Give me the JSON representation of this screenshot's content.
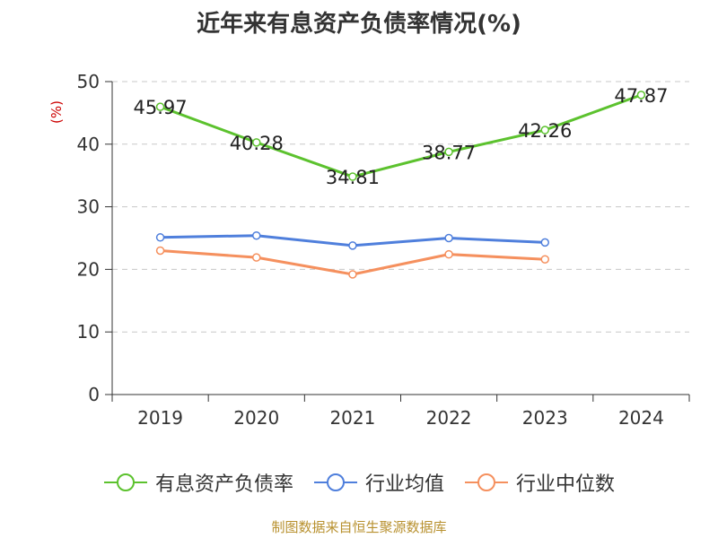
{
  "chart_data": {
    "type": "line",
    "title": "近年来有息资产负债率情况(%)",
    "ylabel": "(%)",
    "xlabel": "",
    "categories": [
      "2019",
      "2020",
      "2021",
      "2022",
      "2023",
      "2024"
    ],
    "ylim": [
      0,
      50
    ],
    "yticks": [
      "0",
      "10",
      "20",
      "30",
      "40",
      "50"
    ],
    "grid": "horizontal-dashed",
    "legend_position": "bottom",
    "series": [
      {
        "name": "有息资产负债率",
        "color": "#5cc22e",
        "values": [
          45.97,
          40.28,
          34.81,
          38.77,
          42.26,
          47.87
        ],
        "labels": [
          "45.97",
          "40.28",
          "34.81",
          "38.77",
          "42.26",
          "47.87"
        ]
      },
      {
        "name": "行业均值",
        "color": "#4f7fdc",
        "values": [
          25.1,
          25.4,
          23.8,
          25.0,
          24.3,
          null
        ]
      },
      {
        "name": "行业中位数",
        "color": "#f5905e",
        "values": [
          23.0,
          21.9,
          19.2,
          22.4,
          21.6,
          null
        ]
      }
    ]
  },
  "footer": {
    "source": "制图数据来自恒生聚源数据库"
  }
}
